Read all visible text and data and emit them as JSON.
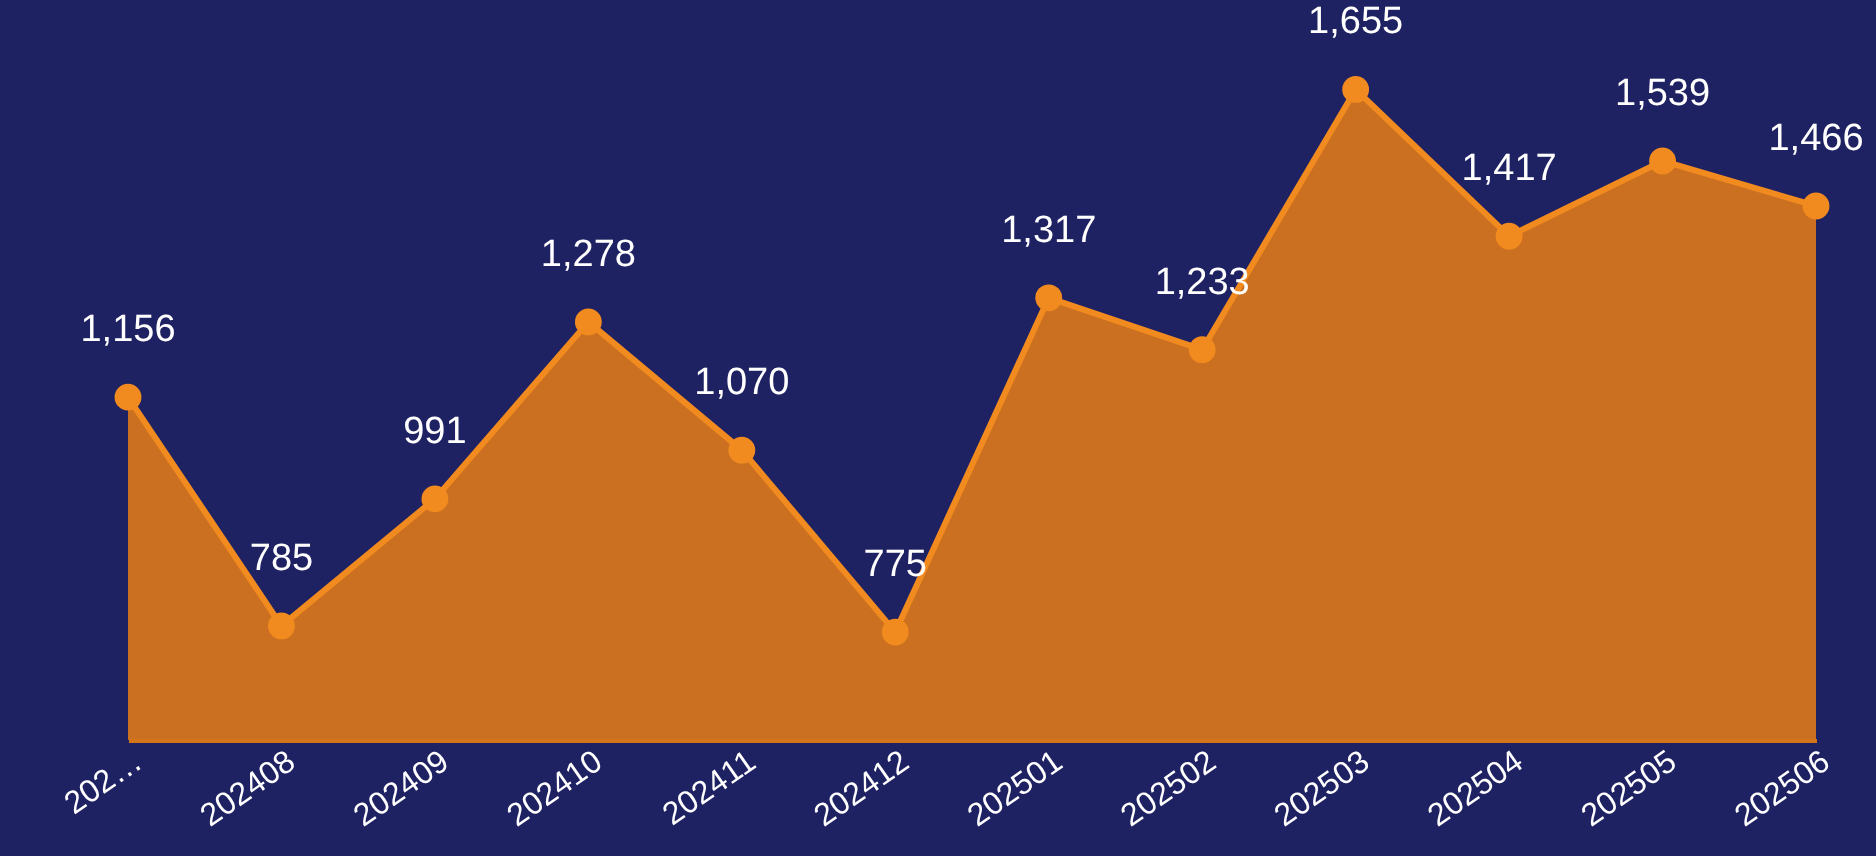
{
  "chart_data": {
    "type": "area",
    "categories": [
      "202…",
      "202408",
      "202409",
      "202410",
      "202411",
      "202412",
      "202501",
      "202502",
      "202503",
      "202504",
      "202505",
      "202506"
    ],
    "series": [
      {
        "color": "#d4751c",
        "values": [
          1156,
          785,
          991,
          1278,
          1070,
          775,
          1317,
          1233,
          1655,
          1417,
          1539,
          1466
        ],
        "value_labels": [
          "1,156",
          "785",
          "991",
          "1,278",
          "1,070",
          "775",
          "1,317",
          "1,233",
          "1,655",
          "1,417",
          "1,539",
          "1,466"
        ]
      }
    ],
    "ylim": [
      600,
      1800
    ],
    "marker": "circle",
    "grid": false,
    "tick_labels": "x"
  }
}
